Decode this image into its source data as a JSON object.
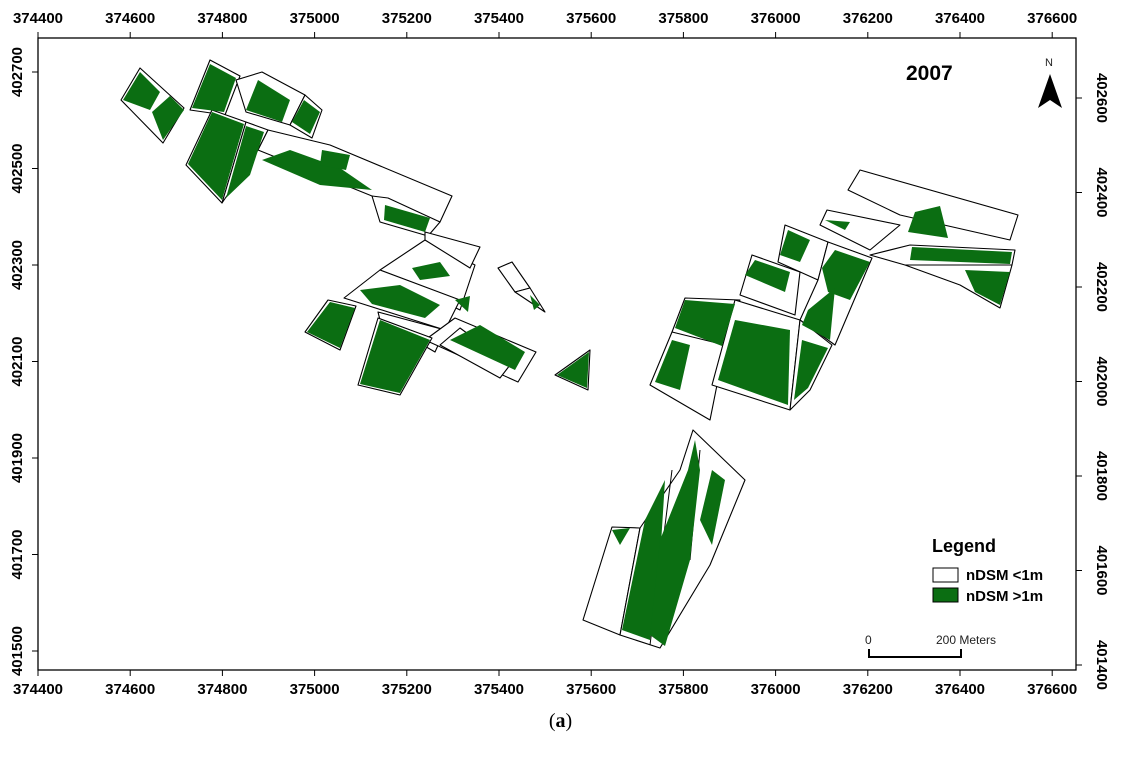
{
  "map": {
    "year_label": "2007",
    "north_label": "N",
    "x_axis": {
      "range": [
        374400,
        376600
      ],
      "ticks": [
        "374400",
        "374600",
        "374800",
        "375000",
        "375200",
        "375400",
        "375600",
        "375800",
        "376000",
        "376200",
        "376400",
        "376600"
      ]
    },
    "y_axis_left": {
      "ticks": [
        "402700",
        "402500",
        "402300",
        "402100",
        "401900",
        "401700",
        "401500"
      ]
    },
    "y_axis_right": {
      "ticks": [
        "402600",
        "402400",
        "402200",
        "402000",
        "401800",
        "401600",
        "401400"
      ]
    },
    "legend": {
      "title": "Legend",
      "items": [
        {
          "label": "nDSM <1m",
          "color": "#ffffff"
        },
        {
          "label": "nDSM >1m",
          "color": "#0b6e12"
        }
      ]
    },
    "scale_bar": {
      "start_label": "0",
      "end_label": "200 Meters"
    },
    "colors": {
      "vegetation": "#0b6e12",
      "background": "#ffffff"
    }
  },
  "caption": {
    "open": "(",
    "letter": "a",
    "close": ")"
  }
}
